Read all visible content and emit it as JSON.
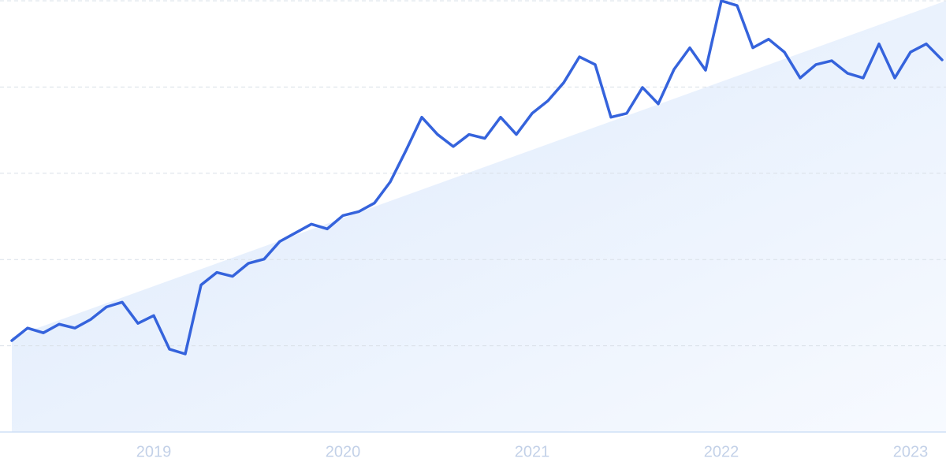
{
  "chart_data": {
    "type": "line",
    "categories": [
      null,
      null,
      null,
      null,
      null,
      null,
      null,
      null,
      null,
      "2019",
      null,
      null,
      null,
      null,
      null,
      null,
      null,
      null,
      null,
      null,
      null,
      "2020",
      null,
      null,
      null,
      null,
      null,
      null,
      null,
      null,
      null,
      null,
      null,
      "2021",
      null,
      null,
      null,
      null,
      null,
      null,
      null,
      null,
      null,
      null,
      null,
      "2022",
      null,
      null,
      null,
      null,
      null,
      null,
      null,
      null,
      null,
      null,
      null,
      "2023",
      null,
      null
    ],
    "values": [
      21.2,
      24.1,
      23.0,
      25.0,
      24.1,
      26.1,
      29.0,
      30.1,
      25.2,
      27.0,
      19.2,
      18.1,
      34.1,
      37.0,
      36.1,
      39.1,
      40.1,
      44.2,
      46.2,
      48.2,
      47.1,
      50.2,
      51.1,
      53.1,
      58.0,
      65.3,
      73.0,
      69.0,
      66.2,
      69.0,
      68.1,
      73.0,
      69.0,
      73.9,
      76.8,
      81.0,
      87.0,
      85.2,
      73.0,
      73.9,
      79.9,
      76.1,
      84.1,
      89.1,
      83.9,
      100,
      98.9,
      89.1,
      91.1,
      88.1,
      82.1,
      85.2,
      86.1,
      83.2,
      82.1,
      90.0,
      82.1,
      88.1,
      90.0,
      86.3
    ],
    "color": "#3563dc",
    "ylim": [
      0,
      100
    ],
    "yticks": [
      0,
      20,
      40,
      60,
      80,
      100
    ],
    "grid": true
  }
}
